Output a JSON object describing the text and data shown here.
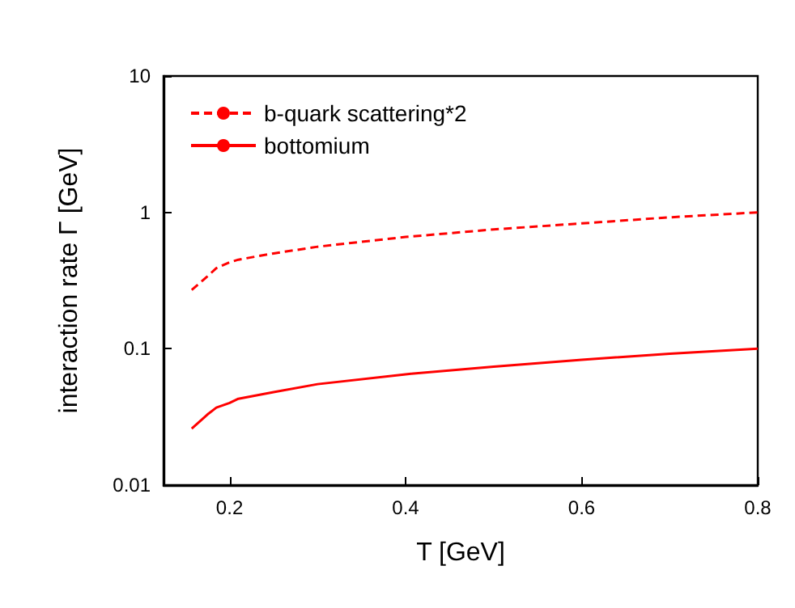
{
  "chart_data": {
    "type": "line",
    "xlabel": "T [GeV]",
    "ylabel": "interaction rate Γ [GeV]",
    "x": [
      0.157,
      0.175,
      0.185,
      0.2,
      0.21,
      0.25,
      0.3,
      0.4,
      0.5,
      0.6,
      0.7,
      0.8
    ],
    "series": [
      {
        "name": "b-quark scattering*2",
        "color": "#ff0000",
        "line_style": "dashed",
        "values": [
          0.27,
          0.34,
          0.39,
          0.43,
          0.45,
          0.5,
          0.56,
          0.66,
          0.75,
          0.83,
          0.92,
          1.0
        ]
      },
      {
        "name": "bottomium",
        "color": "#ff0000",
        "line_style": "solid",
        "values": [
          0.026,
          0.033,
          0.037,
          0.04,
          0.043,
          0.048,
          0.055,
          0.065,
          0.074,
          0.083,
          0.092,
          0.1
        ]
      }
    ],
    "xlim": [
      0.125,
      0.8
    ],
    "xticks": [
      0.2,
      0.4,
      0.6,
      0.8
    ],
    "ylim": [
      0.01,
      10
    ],
    "yticks": [
      0.01,
      0.1,
      1,
      10
    ],
    "log": "y",
    "grid": false,
    "legend": "top left",
    "marker": "none"
  }
}
